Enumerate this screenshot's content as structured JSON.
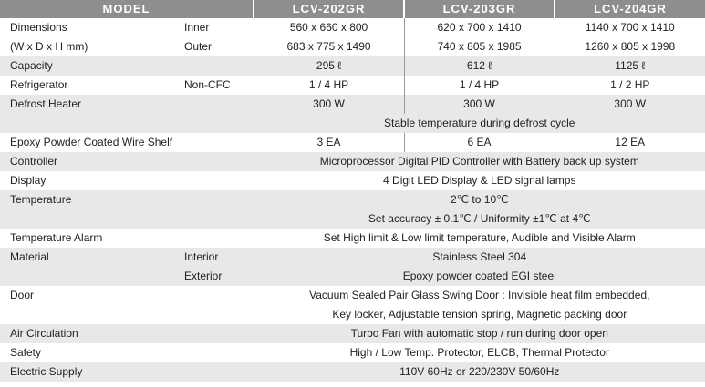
{
  "header": {
    "model": "MODEL",
    "models": [
      "LCV-202GR",
      "LCV-203GR",
      "LCV-204GR"
    ]
  },
  "rows": {
    "dimensions": {
      "label": "Dimensions",
      "label2": "(W x D x H mm)",
      "inner": "Inner",
      "outer": "Outer",
      "inner_values": [
        "560 x 660 x 800",
        "620 x 700 x 1410",
        "1140 x 700 x 1410"
      ],
      "outer_values": [
        "683 x 775 x 1490",
        "740 x 805 x 1985",
        "1260 x 805 x 1998"
      ]
    },
    "capacity": {
      "label": "Capacity",
      "values": [
        "295 ℓ",
        "612 ℓ",
        "1125 ℓ"
      ]
    },
    "refrigerator": {
      "label": "Refrigerator",
      "sub": "Non-CFC",
      "values": [
        "1 / 4 HP",
        "1 / 4 HP",
        "1 / 2 HP"
      ]
    },
    "defrost": {
      "label": "Defrost Heater",
      "values": [
        "300 W",
        "300 W",
        "300 W"
      ],
      "note": "Stable temperature during defrost cycle"
    },
    "shelf": {
      "label": "Epoxy Powder Coated Wire Shelf",
      "values": [
        "3 EA",
        "6 EA",
        "12 EA"
      ]
    },
    "controller": {
      "label": "Controller",
      "value": "Microprocessor Digital PID Controller with Battery back up system"
    },
    "display": {
      "label": "Display",
      "value": "4 Digit LED Display & LED signal lamps"
    },
    "temperature": {
      "label": "Temperature",
      "value": "2℃ to 10℃",
      "value2": "Set accuracy ± 0.1℃ / Uniformity ±1℃ at 4℃"
    },
    "alarm": {
      "label": "Temperature Alarm",
      "value": "Set High limit & Low limit temperature, Audible and Visible Alarm"
    },
    "material": {
      "label": "Material",
      "interior": "Interior",
      "exterior": "Exterior",
      "interior_value": "Stainless Steel 304",
      "exterior_value": "Epoxy powder coated EGI steel"
    },
    "door": {
      "label": "Door",
      "value": "Vacuum Sealed Pair Glass Swing Door : Invisible heat film embedded,",
      "value2": "Key locker, Adjustable tension spring, Magnetic packing door"
    },
    "air": {
      "label": "Air Circulation",
      "value": "Turbo Fan with automatic stop / run during door open"
    },
    "safety": {
      "label": "Safety",
      "value": "High / Low Temp. Protector, ELCB, Thermal Protector"
    },
    "electric": {
      "label": "Electric Supply",
      "value": "110V 60Hz  or  220/230V 50/60Hz"
    }
  }
}
